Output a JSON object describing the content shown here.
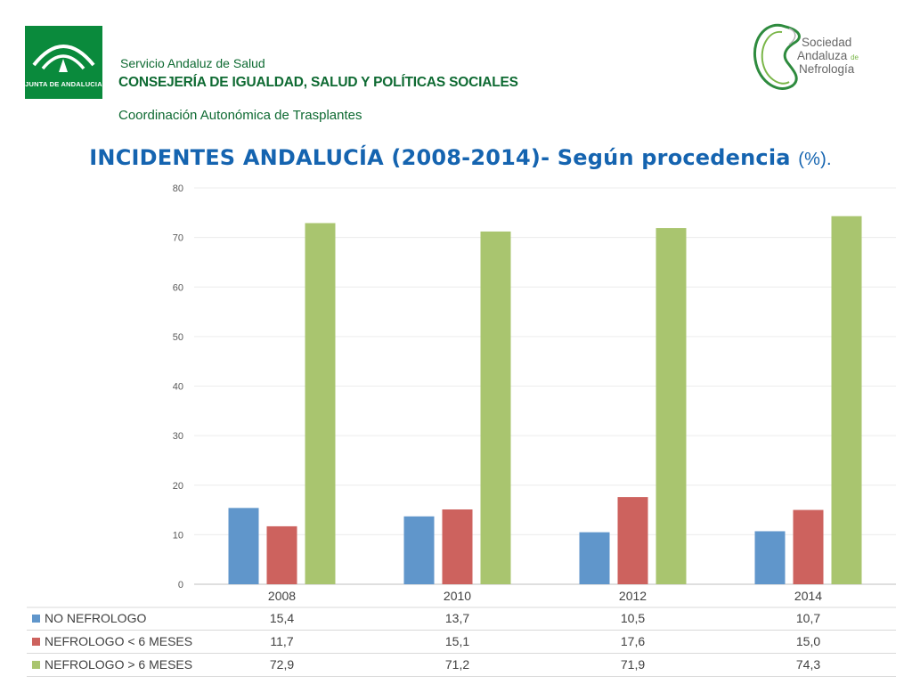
{
  "header": {
    "junta_logo_text": "JUNTA DE ANDALUCIA",
    "org_line1": "Servicio Andaluz de Salud",
    "org_line2": "CONSEJERÍA DE IGUALDAD, SALUD Y POLÍTICAS SOCIALES",
    "org_line3": "Coordinación Autonómica de Trasplantes",
    "society_line1": "Sociedad",
    "society_line2": "Andaluza",
    "society_de": "de",
    "society_line3": "Nefrología"
  },
  "title": {
    "main": "INCIDENTES ANDALUCÍA (2008-2014)- Según procedencia",
    "suffix": "(%)."
  },
  "colors": {
    "brand_green": "#0a8a3c",
    "title_blue": "#1564b0",
    "series_blue": "#6096cb",
    "series_red": "#cd625e",
    "series_green": "#a9c56f"
  },
  "chart_data": {
    "type": "bar",
    "title": "INCIDENTES ANDALUCÍA (2008-2014)- Según procedencia (%).",
    "categories": [
      "2008",
      "2010",
      "2012",
      "2014"
    ],
    "series": [
      {
        "name": "NO NEFROLOGO",
        "values": [
          15.4,
          13.7,
          10.5,
          10.7
        ],
        "labels": [
          "15,4",
          "13,7",
          "10,5",
          "10,7"
        ],
        "color": "#6096cb"
      },
      {
        "name": "NEFROLOGO < 6 MESES",
        "values": [
          11.7,
          15.1,
          17.6,
          15.0
        ],
        "labels": [
          "11,7",
          "15,1",
          "17,6",
          "15,0"
        ],
        "color": "#cd625e"
      },
      {
        "name": "NEFROLOGO > 6 MESES",
        "values": [
          72.9,
          71.2,
          71.9,
          74.3
        ],
        "labels": [
          "72,9",
          "71,2",
          "71,9",
          "74,3"
        ],
        "color": "#a9c56f"
      }
    ],
    "ylim": [
      0,
      80
    ],
    "yticks": [
      0,
      10,
      20,
      30,
      40,
      50,
      60,
      70,
      80
    ],
    "grid": true,
    "legend": "data-table below chart"
  }
}
